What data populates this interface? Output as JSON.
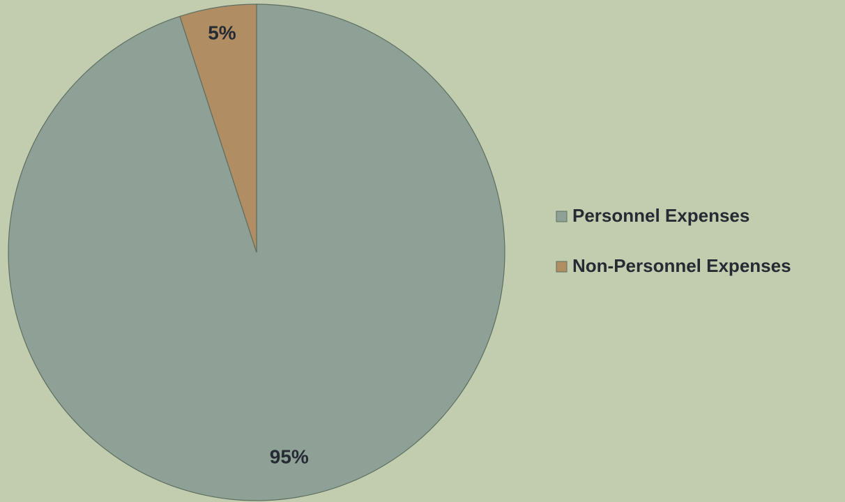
{
  "chart_data": {
    "type": "pie",
    "categories": [
      "Personnel Expenses",
      "Non-Personnel Expenses"
    ],
    "values": [
      95,
      5
    ],
    "value_labels": [
      "95%",
      "5%"
    ],
    "colors": [
      "#8fa197",
      "#b08d63"
    ],
    "legend": "right"
  }
}
